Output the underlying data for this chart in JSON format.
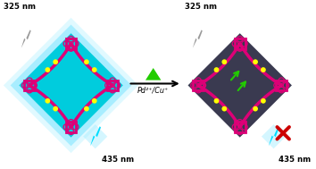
{
  "bg_color": "#ffffff",
  "left_diamond_color": "#00ccdd",
  "left_glow_color": "#88eeff",
  "right_diamond_color": "#3a3a50",
  "mof_frame_color": "#dd0077",
  "yellow_color": "#ffff00",
  "green_color": "#22cc00",
  "grey_bolt_color": "#999999",
  "cyan_bolt_color": "#00ddff",
  "cross_color": "#cc0000",
  "text_color": "#000000",
  "text_325_left": "325 nm",
  "text_435_left": "435 nm",
  "text_325_right": "325 nm",
  "text_435_right": "435 nm",
  "arrow_label": "Pd²⁺/Cu⁺",
  "fig_width": 3.54,
  "fig_height": 1.89,
  "dpi": 100
}
